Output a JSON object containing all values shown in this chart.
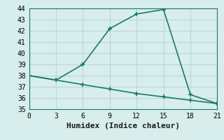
{
  "line1_x": [
    0,
    3,
    6,
    9,
    12,
    15,
    18,
    21
  ],
  "line1_y": [
    38.0,
    37.6,
    39.0,
    42.2,
    43.5,
    43.9,
    36.3,
    35.5
  ],
  "line2_x": [
    0,
    3,
    6,
    9,
    12,
    15,
    18,
    21
  ],
  "line2_y": [
    38.0,
    37.6,
    37.2,
    36.8,
    36.4,
    36.1,
    35.8,
    35.5
  ],
  "line_color": "#1a7a6e",
  "bg_color": "#d8eeec",
  "grid_color": "#b8d8d4",
  "xlabel": "Humidex (Indice chaleur)",
  "xlim": [
    0,
    21
  ],
  "ylim": [
    35,
    44
  ],
  "xticks": [
    0,
    3,
    6,
    9,
    12,
    15,
    18,
    21
  ],
  "yticks": [
    35,
    36,
    37,
    38,
    39,
    40,
    41,
    42,
    43,
    44
  ],
  "marker": "+",
  "markersize": 5,
  "linewidth": 1.2,
  "font_family": "monospace",
  "xlabel_fontsize": 8,
  "tick_fontsize": 7
}
